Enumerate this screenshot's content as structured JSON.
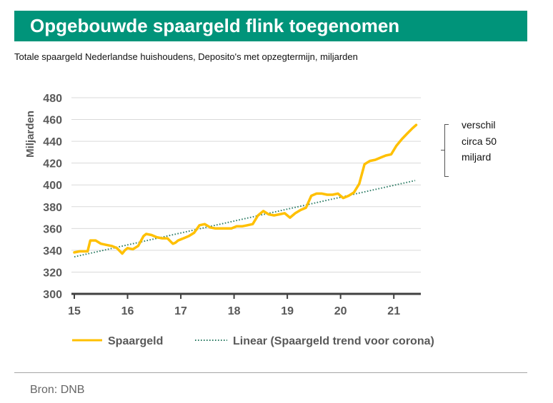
{
  "header": {
    "title": "Opgebouwde spaargeld flink toegenomen",
    "subtitle": "Totale spaargeld Nederlandse huishoudens, Deposito's met opzegtermijn, miljarden"
  },
  "annotation": {
    "lines": [
      "verschil",
      "circa 50",
      "miljard"
    ]
  },
  "footer": {
    "source": "Bron: DNB"
  },
  "colors": {
    "title_bg": "#00947a",
    "series": "#ffc000",
    "trend": "#2e7d66",
    "axis_text": "#595959"
  },
  "chart_data": {
    "type": "line",
    "title": "Opgebouwde spaargeld flink toegenomen",
    "xlabel": "",
    "ylabel": "Miljarden",
    "xlim": [
      15,
      21.45
    ],
    "ylim": [
      300,
      480
    ],
    "yticks": [
      300,
      320,
      340,
      360,
      380,
      400,
      420,
      440,
      460,
      480
    ],
    "xticks": [
      15,
      16,
      17,
      18,
      19,
      20,
      21
    ],
    "xtick_labels": [
      "15",
      "16",
      "17",
      "18",
      "19",
      "20",
      "21"
    ],
    "grid": "horizontal",
    "legend_position": "bottom",
    "series": [
      {
        "name": "Spaargeld",
        "style": "solid",
        "x": [
          15.0,
          15.1,
          15.2,
          15.25,
          15.3,
          15.4,
          15.5,
          15.6,
          15.7,
          15.8,
          15.9,
          15.95,
          16.0,
          16.1,
          16.2,
          16.3,
          16.35,
          16.45,
          16.55,
          16.65,
          16.75,
          16.85,
          16.9,
          16.95,
          17.05,
          17.15,
          17.25,
          17.35,
          17.45,
          17.55,
          17.65,
          17.75,
          17.85,
          17.95,
          18.05,
          18.15,
          18.25,
          18.35,
          18.45,
          18.55,
          18.65,
          18.75,
          18.85,
          18.95,
          19.05,
          19.15,
          19.25,
          19.35,
          19.45,
          19.55,
          19.65,
          19.75,
          19.85,
          19.95,
          20.05,
          20.15,
          20.25,
          20.35,
          20.45,
          20.55,
          20.65,
          20.75,
          20.85,
          20.95,
          21.05,
          21.15,
          21.25,
          21.35,
          21.42
        ],
        "values": [
          338,
          339,
          339,
          339,
          349,
          349,
          346,
          345,
          344,
          342,
          337,
          340,
          342,
          341,
          344,
          353,
          355,
          354,
          352,
          351,
          351,
          346,
          347,
          349,
          351,
          353,
          356,
          363,
          364,
          361,
          360,
          360,
          360,
          360,
          362,
          362,
          363,
          364,
          372,
          376,
          373,
          372,
          373,
          374,
          370,
          374,
          377,
          379,
          390,
          392,
          392,
          391,
          391,
          392,
          388,
          390,
          393,
          401,
          419,
          422,
          423,
          425,
          427,
          428,
          436,
          442,
          447,
          452,
          455
        ]
      },
      {
        "name": "Linear (Spaargeld trend voor corona)",
        "style": "dotted",
        "x": [
          15.0,
          21.4
        ],
        "values": [
          334,
          404
        ]
      }
    ]
  }
}
